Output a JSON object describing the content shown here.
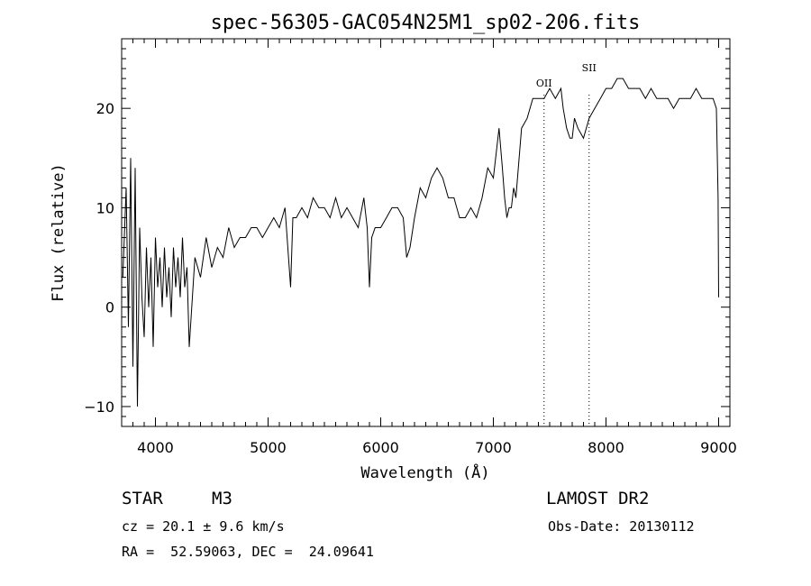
{
  "chart_data": {
    "type": "line",
    "title": "spec-56305-GAC054N25M1_sp02-206.fits",
    "xlabel": "Wavelength (Å)",
    "ylabel": "Flux (relative)",
    "xlim": [
      3700,
      9100
    ],
    "ylim": [
      -12,
      27
    ],
    "xticks": [
      4000,
      5000,
      6000,
      7000,
      8000,
      9000
    ],
    "yticks": [
      -10,
      0,
      10,
      20
    ],
    "lines": [
      {
        "label": "OII",
        "x": 7450
      },
      {
        "label": "SII",
        "x": 7850
      }
    ],
    "x": [
      3710,
      3740,
      3760,
      3780,
      3800,
      3820,
      3840,
      3860,
      3880,
      3900,
      3920,
      3940,
      3960,
      3980,
      4000,
      4020,
      4040,
      4060,
      4080,
      4100,
      4120,
      4140,
      4160,
      4180,
      4200,
      4220,
      4240,
      4260,
      4280,
      4300,
      4350,
      4400,
      4450,
      4500,
      4550,
      4600,
      4650,
      4700,
      4750,
      4800,
      4850,
      4900,
      4950,
      5000,
      5050,
      5100,
      5150,
      5200,
      5220,
      5250,
      5300,
      5350,
      5400,
      5450,
      5500,
      5550,
      5600,
      5650,
      5700,
      5750,
      5800,
      5850,
      5880,
      5900,
      5920,
      5950,
      6000,
      6050,
      6100,
      6150,
      6200,
      6230,
      6260,
      6300,
      6350,
      6400,
      6450,
      6500,
      6550,
      6600,
      6650,
      6700,
      6750,
      6800,
      6850,
      6900,
      6950,
      7000,
      7050,
      7080,
      7100,
      7120,
      7140,
      7160,
      7180,
      7200,
      7250,
      7300,
      7350,
      7400,
      7450,
      7500,
      7550,
      7600,
      7620,
      7650,
      7680,
      7700,
      7720,
      7750,
      7800,
      7850,
      7900,
      7950,
      8000,
      8050,
      8100,
      8150,
      8200,
      8250,
      8300,
      8350,
      8400,
      8450,
      8500,
      8550,
      8600,
      8650,
      8700,
      8750,
      8800,
      8850,
      8900,
      8950,
      8980,
      8995,
      9000
    ],
    "y": [
      3,
      12,
      -2,
      15,
      -6,
      14,
      -10,
      8,
      1,
      -3,
      6,
      0,
      5,
      -4,
      7,
      2,
      5,
      0,
      6,
      1,
      4,
      -1,
      6,
      2,
      5,
      1,
      7,
      2,
      4,
      -4,
      5,
      3,
      7,
      4,
      6,
      5,
      8,
      6,
      7,
      7,
      8,
      8,
      7,
      8,
      9,
      8,
      10,
      2,
      9,
      9,
      10,
      9,
      11,
      10,
      10,
      9,
      11,
      9,
      10,
      9,
      8,
      11,
      8,
      2,
      7,
      8,
      8,
      9,
      10,
      10,
      9,
      5,
      6,
      9,
      12,
      11,
      13,
      14,
      13,
      11,
      11,
      9,
      9,
      10,
      9,
      11,
      14,
      13,
      18,
      14,
      11,
      9,
      10,
      10,
      12,
      11,
      18,
      19,
      21,
      21,
      21,
      22,
      21,
      22,
      20,
      18,
      17,
      17,
      19,
      18,
      17,
      19,
      20,
      21,
      22,
      22,
      23,
      23,
      22,
      22,
      22,
      21,
      22,
      21,
      21,
      21,
      20,
      21,
      21,
      21,
      22,
      21,
      21,
      21,
      20,
      11,
      1
    ]
  },
  "info": {
    "object_type": "STAR",
    "subclass": "M3",
    "survey": "LAMOST DR2",
    "cz": "cz = 20.1 ± 9.6 km/s",
    "obs_date": "Obs-Date: 20130112",
    "coords": "RA =  52.59063, DEC =  24.09641"
  },
  "colors": {
    "background": "#ffffff",
    "foreground": "#000000"
  }
}
